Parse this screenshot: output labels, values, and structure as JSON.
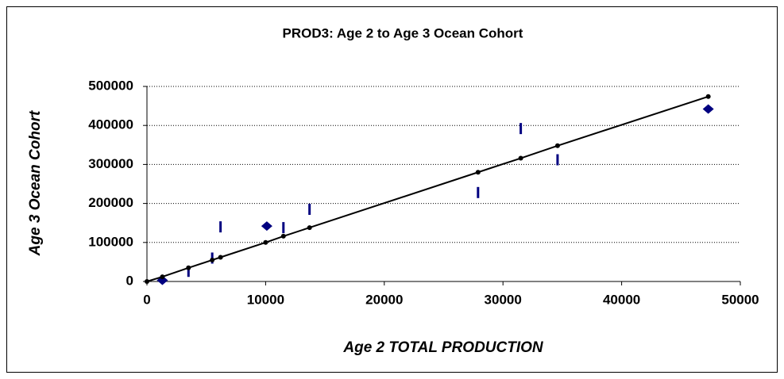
{
  "chart_data": {
    "type": "scatter",
    "title": "PROD3: Age 2 to Age 3 Ocean Cohort",
    "x_label": "Age 2 TOTAL PRODUCTION",
    "y_label": "Age 3 Ocean Cohort",
    "xlim": [
      0,
      50000
    ],
    "xticks": [
      0,
      10000,
      20000,
      30000,
      40000,
      50000
    ],
    "ylim": [
      0,
      500000
    ],
    "yticks": [
      0,
      100000,
      200000,
      300000,
      400000,
      500000
    ],
    "grid": true,
    "series": [
      {
        "color": "#000080",
        "marker": "dash",
        "line": false,
        "x": [
          3500,
          5500,
          6200,
          11500,
          13700,
          27900,
          31500,
          34600
        ],
        "values": [
          26000,
          60000,
          140000,
          138000,
          185000,
          228000,
          392000,
          312000
        ]
      },
      {
        "color": "#000080",
        "marker": "diamond",
        "line": false,
        "x": [
          1300,
          10100,
          47300
        ],
        "values": [
          3000,
          142000,
          442000
        ]
      },
      {
        "color": "#000000",
        "marker": "circle",
        "line": true,
        "x": [
          0,
          1300,
          3500,
          5500,
          6200,
          10000,
          11500,
          13700,
          27900,
          31500,
          34600,
          47300
        ],
        "values": [
          0,
          12000,
          35000,
          55000,
          62000,
          100000,
          116000,
          138000,
          280000,
          316000,
          348000,
          474000
        ]
      }
    ]
  }
}
